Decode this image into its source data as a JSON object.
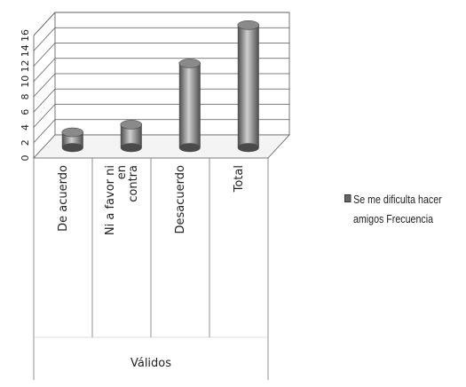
{
  "chart_data": {
    "type": "bar",
    "subtype": "3d-cylinder",
    "title": "",
    "xlabel": "Válidos",
    "ylabel": "",
    "categories": [
      "De acuerdo",
      "Ni a favor ni en contra",
      "Desacuerdo",
      "Total"
    ],
    "category_labels": [
      [
        "De acuerdo"
      ],
      [
        "Ni a favor ni",
        "en",
        "contra"
      ],
      [
        "Desacuerdo"
      ],
      [
        "Total"
      ]
    ],
    "group_label": "Válidos",
    "series": [
      {
        "name": "Se me dificulta hacer amigos Frecuencia",
        "values": [
          2,
          3,
          11,
          16
        ]
      }
    ],
    "ylim": [
      0,
      16
    ],
    "y_ticks": [
      "0",
      "2",
      "4",
      "6",
      "8",
      "10",
      "12",
      "14",
      "16"
    ],
    "grid": true,
    "legend": {
      "position": "right",
      "lines": [
        "Se me dificulta hacer",
        "amigos Frecuencia"
      ]
    },
    "colors": {
      "bar": "#8a8a8a",
      "bar_dark": "#4a4a4a",
      "bar_light": "#d0d0d0",
      "grid": "#555555",
      "legend_swatch": "#666666"
    }
  }
}
